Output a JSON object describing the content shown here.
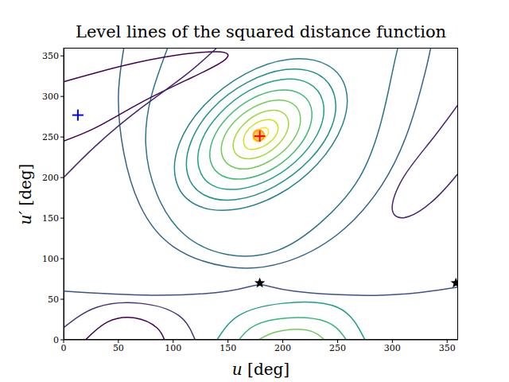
{
  "chart_data": {
    "type": "contour",
    "title": "Level lines of the squared distance function",
    "x_label": "u [deg]",
    "y_label": "u′ [deg]",
    "xlim": [
      0,
      360
    ],
    "ylim": [
      0,
      360
    ],
    "xticks": [
      0,
      50,
      100,
      150,
      200,
      250,
      300,
      350
    ],
    "yticks": [
      0,
      50,
      100,
      150,
      200,
      250,
      300,
      350
    ],
    "grid": false,
    "series": [
      {
        "color": "#fde725",
        "points": [
          [
            186,
            261
          ],
          [
            182,
            262
          ],
          [
            179,
            260
          ],
          [
            175,
            256
          ],
          [
            173,
            252
          ],
          [
            173,
            248
          ],
          [
            174,
            245
          ],
          [
            178,
            244
          ],
          [
            181,
            246
          ],
          [
            185,
            250
          ],
          [
            187,
            254
          ],
          [
            187,
            258
          ]
        ]
      },
      {
        "color": "#d0e11c",
        "points": [
          [
            192,
            271
          ],
          [
            185,
            272
          ],
          [
            177,
            269
          ],
          [
            169,
            261
          ],
          [
            164,
            251
          ],
          [
            164,
            241
          ],
          [
            167,
            235
          ],
          [
            174,
            234
          ],
          [
            183,
            238
          ],
          [
            191,
            246
          ],
          [
            196,
            256
          ],
          [
            196,
            265
          ]
        ]
      },
      {
        "color": "#a0da39",
        "points": [
          [
            200,
            282
          ],
          [
            189,
            284
          ],
          [
            175,
            278
          ],
          [
            163,
            265
          ],
          [
            155,
            249
          ],
          [
            154,
            234
          ],
          [
            160,
            224
          ],
          [
            171,
            222
          ],
          [
            185,
            228
          ],
          [
            197,
            241
          ],
          [
            205,
            257
          ],
          [
            206,
            272
          ]
        ]
      },
      {
        "color": "#6ece58",
        "points": [
          [
            209,
            294
          ],
          [
            192,
            297
          ],
          [
            173,
            288
          ],
          [
            155,
            270
          ],
          [
            144,
            247
          ],
          [
            143,
            226
          ],
          [
            152,
            212
          ],
          [
            168,
            209
          ],
          [
            187,
            218
          ],
          [
            205,
            236
          ],
          [
            216,
            259
          ],
          [
            217,
            280
          ]
        ]
      },
      {
        "color": "#3fbc73",
        "points": [
          [
            217,
            306
          ],
          [
            196,
            310
          ],
          [
            171,
            299
          ],
          [
            148,
            275
          ],
          [
            134,
            246
          ],
          [
            132,
            218
          ],
          [
            143,
            200
          ],
          [
            164,
            196
          ],
          [
            189,
            207
          ],
          [
            212,
            231
          ],
          [
            226,
            260
          ],
          [
            228,
            288
          ]
        ]
      },
      {
        "color": "#1fa187",
        "points": [
          [
            226,
            319
          ],
          [
            200,
            324
          ],
          [
            169,
            310
          ],
          [
            141,
            280
          ],
          [
            123,
            244
          ],
          [
            121,
            210
          ],
          [
            134,
            187
          ],
          [
            160,
            183
          ],
          [
            191,
            197
          ],
          [
            219,
            226
          ],
          [
            237,
            262
          ],
          [
            239,
            296
          ]
        ]
      },
      {
        "color": "#21918c",
        "points": [
          [
            234,
            331
          ],
          [
            204,
            337
          ],
          [
            167,
            320
          ],
          [
            133,
            286
          ],
          [
            113,
            242
          ],
          [
            110,
            202
          ],
          [
            126,
            175
          ],
          [
            156,
            169
          ],
          [
            193,
            186
          ],
          [
            227,
            221
          ],
          [
            248,
            264
          ],
          [
            250,
            304
          ]
        ]
      },
      {
        "color": "#26828e",
        "points": [
          [
            243,
            343
          ],
          [
            207,
            350
          ],
          [
            165,
            331
          ],
          [
            126,
            291
          ],
          [
            102,
            241
          ],
          [
            99,
            194
          ],
          [
            117,
            163
          ],
          [
            153,
            156
          ],
          [
            196,
            175
          ],
          [
            234,
            215
          ],
          [
            258,
            266
          ],
          [
            261,
            312
          ]
        ]
      },
      {
        "color": "#2c728e",
        "points": [
          [
            95,
            360
          ],
          [
            80,
            300
          ],
          [
            75,
            240
          ],
          [
            85,
            180
          ],
          [
            110,
            130
          ],
          [
            150,
            105
          ],
          [
            195,
            110
          ],
          [
            235,
            145
          ],
          [
            270,
            200
          ],
          [
            290,
            270
          ],
          [
            300,
            330
          ],
          [
            305,
            360
          ]
        ]
      },
      {
        "color": "#33638d",
        "points": [
          [
            55,
            360
          ],
          [
            50,
            300
          ],
          [
            55,
            230
          ],
          [
            70,
            165
          ],
          [
            100,
            115
          ],
          [
            150,
            90
          ],
          [
            200,
            95
          ],
          [
            250,
            130
          ],
          [
            290,
            190
          ],
          [
            315,
            260
          ],
          [
            330,
            330
          ],
          [
            335,
            360
          ]
        ]
      },
      {
        "color": "#35b779",
        "points": [
          [
            160,
            0
          ],
          [
            175,
            18
          ],
          [
            205,
            27
          ],
          [
            240,
            22
          ],
          [
            258,
            0
          ]
        ]
      },
      {
        "color": "#6ece58",
        "points": [
          [
            178,
            0
          ],
          [
            195,
            10
          ],
          [
            222,
            12
          ],
          [
            238,
            0
          ]
        ]
      },
      {
        "color": "#1f9e89",
        "points": [
          [
            140,
            0
          ],
          [
            160,
            30
          ],
          [
            200,
            45
          ],
          [
            250,
            40
          ],
          [
            275,
            0
          ]
        ]
      },
      {
        "color": "#3b528b",
        "points": [
          [
            0,
            60
          ],
          [
            80,
            55
          ],
          [
            150,
            60
          ],
          [
            179,
            68
          ],
          [
            210,
            60
          ],
          [
            290,
            55
          ],
          [
            360,
            65
          ]
        ]
      },
      {
        "color": "#440154",
        "points": [
          [
            0,
            318
          ],
          [
            40,
            333
          ],
          [
            90,
            348
          ],
          [
            140,
            355
          ],
          [
            147,
            345
          ],
          [
            115,
            322
          ],
          [
            70,
            292
          ],
          [
            30,
            262
          ],
          [
            0,
            245
          ]
        ]
      },
      {
        "color": "#482475",
        "points": [
          [
            0,
            200
          ],
          [
            30,
            240
          ],
          [
            70,
            285
          ],
          [
            110,
            325
          ],
          [
            140,
            360
          ]
        ]
      },
      {
        "color": "#482475",
        "points": [
          [
            360,
            290
          ],
          [
            335,
            245
          ],
          [
            310,
            200
          ],
          [
            300,
            160
          ],
          [
            315,
            152
          ],
          [
            340,
            175
          ],
          [
            360,
            205
          ]
        ]
      },
      {
        "color": "#440154",
        "points": [
          [
            20,
            0
          ],
          [
            40,
            22
          ],
          [
            65,
            27
          ],
          [
            85,
            15
          ],
          [
            92,
            0
          ]
        ]
      },
      {
        "color": "#46327e",
        "points": [
          [
            0,
            15
          ],
          [
            30,
            40
          ],
          [
            70,
            45
          ],
          [
            105,
            30
          ],
          [
            120,
            0
          ]
        ]
      }
    ],
    "markers": [
      {
        "x": 13,
        "y": 277,
        "color": "#0000ff",
        "marker": "plus"
      },
      {
        "x": 178,
        "y": 252,
        "color": "#ffa500",
        "marker": "circle"
      },
      {
        "x": 179,
        "y": 251,
        "color": "#ff0000",
        "marker": "plus"
      },
      {
        "x": 179,
        "y": 70,
        "color": "#000000",
        "marker": "star"
      },
      {
        "x": 358,
        "y": 70,
        "color": "#000000",
        "marker": "star"
      }
    ]
  }
}
